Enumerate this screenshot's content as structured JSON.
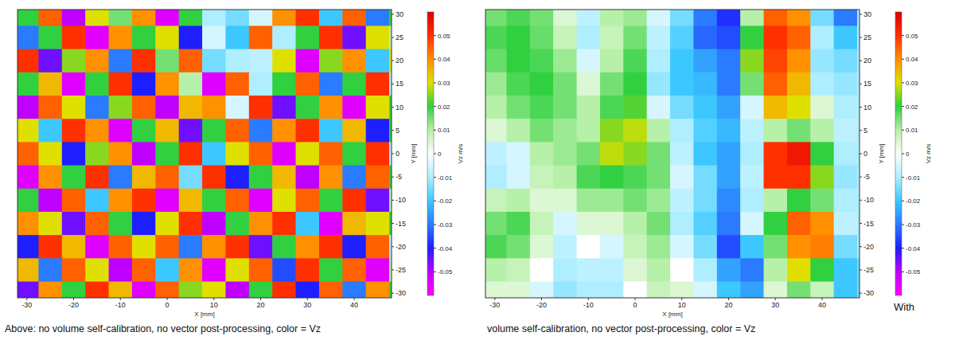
{
  "chart_data": [
    {
      "type": "heatmap",
      "title": "Above: no volume self-calibration, no vector post-processing, color = Vz",
      "xlabel": "X [mm]",
      "ylabel": "Y [mm]",
      "xlim": [
        -32,
        48
      ],
      "ylim": [
        -31,
        31
      ],
      "xticks": [
        -30,
        -20,
        -10,
        0,
        10,
        20,
        30,
        40
      ],
      "yticks": [
        30,
        25,
        20,
        15,
        10,
        5,
        0,
        -5,
        -10,
        -15,
        -20,
        -25,
        -30
      ],
      "x": [
        -30,
        -25,
        -20,
        -15,
        -10,
        -5,
        0,
        5,
        10,
        15,
        20,
        25,
        30,
        35,
        40,
        45,
        50
      ],
      "y": [
        30,
        25,
        20,
        15,
        10,
        5,
        0,
        -5,
        -10,
        -15,
        -20,
        -25,
        -30
      ],
      "cells": [
        [
          0.02,
          0.045,
          -0.05,
          0.03,
          0.015,
          0.04,
          -0.055,
          0.02,
          -0.01,
          -0.015,
          -0.005,
          0.04,
          0.05,
          -0.02,
          0.045,
          -0.03,
          0.02
        ],
        [
          -0.03,
          0.02,
          0.05,
          -0.055,
          0.04,
          0.02,
          0.03,
          -0.04,
          -0.005,
          -0.02,
          0.045,
          -0.01,
          0.02,
          0.05,
          -0.045,
          0.03,
          0.01
        ],
        [
          0.05,
          -0.045,
          0.025,
          0.04,
          -0.03,
          0.05,
          0.015,
          0.045,
          -0.015,
          -0.01,
          -0.008,
          0.03,
          -0.055,
          0.025,
          0.04,
          -0.02,
          0.03
        ],
        [
          0.02,
          0.035,
          -0.055,
          0.02,
          0.05,
          -0.04,
          0.04,
          0.01,
          -0.055,
          0.045,
          -0.01,
          0.02,
          0.045,
          -0.03,
          0.02,
          0.05,
          -0.01
        ],
        [
          -0.05,
          0.045,
          0.03,
          -0.03,
          0.025,
          0.045,
          -0.05,
          0.035,
          0.04,
          -0.005,
          0.05,
          -0.045,
          0.02,
          0.04,
          -0.055,
          0.03,
          0.02
        ],
        [
          0.03,
          -0.02,
          0.05,
          0.04,
          -0.055,
          0.02,
          0.035,
          -0.045,
          0.02,
          0.045,
          -0.03,
          0.04,
          0.05,
          -0.02,
          0.035,
          -0.04,
          0.02
        ],
        [
          0.045,
          0.03,
          -0.04,
          0.025,
          0.04,
          -0.05,
          0.02,
          0.05,
          -0.02,
          0.03,
          0.045,
          -0.055,
          0.03,
          0.045,
          0.02,
          0.05,
          -0.01
        ],
        [
          -0.055,
          0.04,
          0.02,
          0.05,
          -0.03,
          0.035,
          0.045,
          -0.015,
          0.05,
          -0.04,
          0.02,
          0.035,
          -0.05,
          0.04,
          -0.03,
          0.045,
          0.02
        ],
        [
          0.02,
          -0.05,
          0.045,
          -0.02,
          0.04,
          0.05,
          -0.055,
          0.035,
          0.02,
          0.045,
          -0.055,
          0.03,
          0.045,
          0.02,
          0.05,
          -0.045,
          0.01
        ],
        [
          0.04,
          0.03,
          -0.045,
          0.045,
          0.02,
          -0.04,
          0.03,
          0.05,
          -0.05,
          0.02,
          0.04,
          0.05,
          -0.02,
          -0.055,
          0.035,
          0.03,
          0.02
        ],
        [
          -0.04,
          0.05,
          0.035,
          -0.055,
          0.045,
          0.03,
          0.045,
          -0.03,
          0.04,
          0.05,
          -0.045,
          0.02,
          0.04,
          0.05,
          -0.04,
          0.045,
          -0.01
        ],
        [
          0.035,
          -0.03,
          0.045,
          0.03,
          -0.05,
          0.045,
          -0.02,
          0.04,
          -0.055,
          0.03,
          0.045,
          -0.035,
          0.05,
          0.02,
          0.045,
          -0.055,
          0.01
        ],
        [
          -0.045,
          0.04,
          0.02,
          0.05,
          0.035,
          -0.055,
          0.045,
          0.025,
          0.03,
          -0.05,
          0.02,
          0.05,
          -0.04,
          0.045,
          -0.03,
          0.04,
          0.02
        ]
      ],
      "colorbar": {
        "label": "Vz m/s",
        "range": [
          -0.06,
          0.06
        ],
        "ticks": [
          0.05,
          0.04,
          0.03,
          0.02,
          0.01,
          0,
          -0.01,
          -0.02,
          -0.03,
          -0.04,
          -0.05
        ]
      }
    },
    {
      "type": "heatmap",
      "title": "volume self-calibration, no vector post-processing, color = Vz",
      "annotations": [
        "With"
      ],
      "xlabel": "X [mm]",
      "ylabel": "Y [mm]",
      "xlim": [
        -32,
        48
      ],
      "ylim": [
        -31,
        31
      ],
      "xticks": [
        -30,
        -20,
        -10,
        0,
        10,
        20,
        30,
        40
      ],
      "yticks": [
        30,
        25,
        20,
        15,
        10,
        5,
        0,
        -5,
        -10,
        -15,
        -20,
        -25,
        -30
      ],
      "x": [
        -30,
        -25,
        -20,
        -15,
        -10,
        -5,
        0,
        5,
        10,
        15,
        20,
        25,
        30,
        35,
        40,
        45,
        50
      ],
      "y": [
        30,
        25,
        20,
        15,
        10,
        5,
        0,
        -5,
        -10,
        -15,
        -20,
        -25,
        -30
      ],
      "cells": [
        [
          0.015,
          0.018,
          0.015,
          0.005,
          -0.008,
          0.01,
          0.012,
          -0.005,
          -0.015,
          -0.03,
          -0.038,
          0.01,
          0.045,
          0.04,
          -0.015,
          -0.03,
          -0.01
        ],
        [
          0.018,
          0.02,
          0.016,
          0.008,
          -0.01,
          0.008,
          0.015,
          -0.008,
          -0.018,
          -0.032,
          -0.035,
          0.02,
          0.05,
          0.045,
          -0.01,
          -0.02,
          -0.01
        ],
        [
          0.016,
          0.02,
          0.018,
          0.012,
          -0.005,
          0.01,
          0.018,
          -0.01,
          -0.02,
          -0.025,
          -0.03,
          0.025,
          0.048,
          0.04,
          -0.012,
          -0.015,
          -0.01
        ],
        [
          0.012,
          0.018,
          0.02,
          0.015,
          0.005,
          0.015,
          0.02,
          -0.012,
          -0.02,
          -0.022,
          -0.03,
          0.015,
          0.045,
          0.035,
          -0.01,
          -0.012,
          -0.01
        ],
        [
          0.01,
          0.015,
          0.018,
          0.015,
          0.01,
          0.018,
          0.022,
          -0.005,
          -0.015,
          -0.02,
          -0.025,
          -0.005,
          0.035,
          0.03,
          0.005,
          -0.01,
          -0.01
        ],
        [
          0.005,
          0.01,
          0.015,
          0.012,
          0.01,
          0.025,
          0.028,
          0.01,
          -0.01,
          -0.018,
          -0.022,
          -0.008,
          0.01,
          0.015,
          0.01,
          -0.008,
          -0.01
        ],
        [
          -0.008,
          -0.005,
          0.01,
          0.012,
          0.015,
          0.028,
          0.025,
          0.015,
          -0.008,
          -0.02,
          -0.025,
          -0.01,
          0.05,
          0.055,
          0.02,
          -0.01,
          -0.01
        ],
        [
          -0.01,
          -0.005,
          0.008,
          0.01,
          0.018,
          0.02,
          0.018,
          0.015,
          -0.005,
          -0.015,
          -0.025,
          -0.008,
          0.05,
          0.05,
          0.025,
          -0.012,
          -0.01
        ],
        [
          0.008,
          0.01,
          0.005,
          0.005,
          0.012,
          0.012,
          0.015,
          0.012,
          -0.008,
          -0.015,
          -0.028,
          -0.01,
          0.01,
          0.02,
          0.015,
          -0.01,
          -0.01
        ],
        [
          0.015,
          0.018,
          0.008,
          -0.005,
          0.005,
          0.005,
          0.01,
          0.015,
          -0.01,
          -0.018,
          -0.03,
          -0.005,
          0.02,
          0.045,
          0.04,
          -0.008,
          -0.01
        ],
        [
          0.018,
          0.015,
          0.005,
          -0.008,
          0,
          -0.005,
          0.008,
          0.012,
          -0.005,
          -0.015,
          -0.035,
          -0.02,
          0.015,
          0.04,
          0.042,
          -0.015,
          -0.01
        ],
        [
          0.01,
          0.008,
          0,
          -0.01,
          -0.008,
          -0.008,
          0.005,
          0.01,
          0,
          -0.01,
          -0.025,
          -0.03,
          0.01,
          0.03,
          0.02,
          -0.02,
          -0.015
        ],
        [
          0.005,
          0.005,
          -0.005,
          -0.012,
          -0.01,
          -0.01,
          0,
          0.008,
          0.005,
          -0.005,
          -0.02,
          -0.025,
          0.005,
          0.015,
          0.008,
          -0.02,
          -0.015
        ]
      ],
      "colorbar": {
        "label": "Vz m/s",
        "range": [
          -0.06,
          0.06
        ],
        "ticks": [
          0.05,
          0.04,
          0.03,
          0.02,
          0.01,
          0,
          -0.01,
          -0.02,
          -0.03,
          -0.04,
          -0.05
        ]
      }
    }
  ]
}
